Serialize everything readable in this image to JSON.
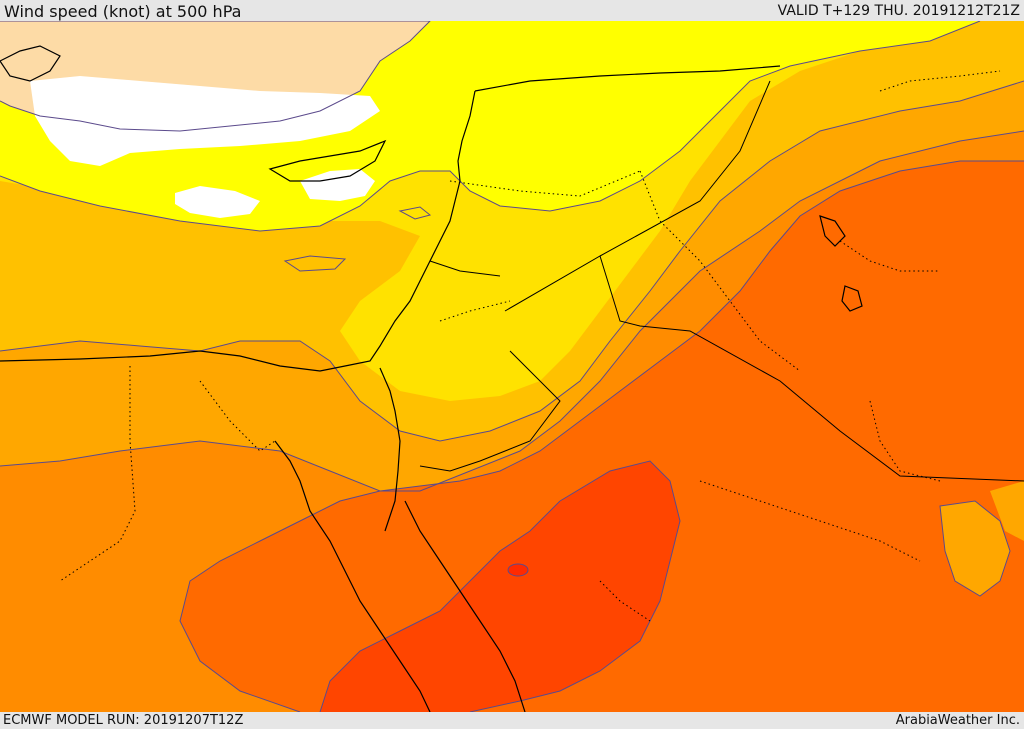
{
  "header": {
    "title": "Wind speed (knot) at 500 hPa",
    "valid_time": "VALID T+129 THU. 20191212T21Z"
  },
  "footer": {
    "model_run": "ECMWF MODEL RUN: 20191207T12Z",
    "credit": "ArabiaWeather Inc."
  },
  "map": {
    "colors": {
      "white_band": "#ffffff",
      "peach_band": "#fddba6",
      "yellow_band": "#ffff00",
      "light_gold_band": "#ffe200",
      "gold_band": "#ffc100",
      "light_orange_band": "#ffa700",
      "orange_band": "#ff8c00",
      "dark_orange_band": "#ff6a00",
      "red_orange_band": "#ff4500",
      "red_band": "#ff2a00",
      "contour_line": "#5b4a8c",
      "coastline": "#000000",
      "border": "#000000"
    }
  }
}
